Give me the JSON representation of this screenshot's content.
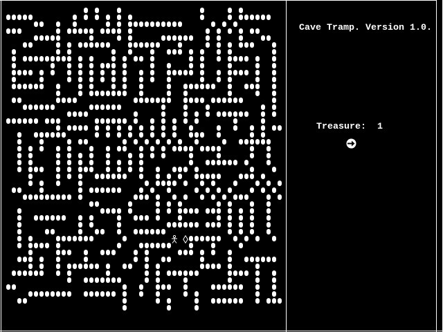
{
  "title": "Cave Tramp. Version 1.0.",
  "status": {
    "treasure_label": "Treasure:",
    "treasure_count": "1"
  },
  "icons": {
    "player": "stick-figure-icon",
    "treasure": "diamond-icon",
    "compass": "arrow-right-circle-icon"
  },
  "colors": {
    "background": "#000000",
    "foreground": "#ffffff"
  },
  "maze_legend": {
    "#": "wall",
    "P": "player",
    "D": "treasure",
    ".": "empty"
  },
  "maze": [
    "...................................................",
    "...............#.#...#..............#....#.#.......",
    ".#####.......#.#.#.#.#.#............#....#.######..",
    "......##..#..#.....#.#.##########.....#.#.#.......",
    ".###......#.#####.####.#.............#.#.#.#.##....",
    "......#####.....#....#.#.....######..#.#...#...##..",
    "....##....#.#.######...######...#....#.#.#.###...#.",
    "..#.......#.#.......#..#...#..###.#.#..#.#.......#.",
    "..#.#########.#.#...#.#.##.#......#.#..#.####.#..#.",
    "..#......#..#.#.#.###.#....#..#...#.#....#....#..#.",
    "..####.#.#..#.#.#.#.#.#..#.#..#####.#..#.####.#..#.",
    "..#....#....#.#.#.#.#.#..#.#..#.....#..#.#....#..#.",
    "..######..#...#.#...#.#..#....#..######..#..###..#.",
    "..........#...#.#######..#....#..#.......#....#..#.",
    "..##......####..........#######..####.######.....#.",
    "....######......######.......#...#...#.........#.#.",
    "............####........#....#...#.#.#.######..#.#.",
    ".######.###......######.#..#.#.#.#.#......#....#...",
    "..........#.####.#.#.#.#.#.#.#.#..#....#..#..#.#.##",
    "...#..######.....#.#.#.#.#.#.#.#..###..#.....#.#...",
    "...#...#....#.##......#.#.#.#.#.#..#....#..######..",
    "...#.#.#..#.#...#..#.##..#.#.#.####.####.....#..#..",
    "...#.#....#.#.#.#..#...#.#.#.#....#....#.....#..#..",
    "...#.#....#.#.#.#..#.#.#.#........#..######.#...#.",
    "...#.###..#.#.###..#.#.#.#..#..###.#.........#...#.",
    ".....#....#.#.#..######..#..#.#.#..#####...###.#...",
    ".....#.#..#...#...........#.####.#..#.#...#...#.#.#.",
    "..##...#......#.######...#.#..#....#.#.#.#...#.#.#.",
    "....#########.#.........###.#..#.#..#.#.#.###...#.#.",
    "................##.....#....#.#.#......#.#...#..#..",
    "...#..............####.#....#.#.####.###.#.#.#..#..",
    "...#..######..#.#....#..###.#...#......#.#.#.#..#..",
    "...#..........#.#....#........######.###.#.#.#..#..",
    "...#....##....#..##..#..######...........#.#.#..#..",
    "...#.#....#######.....#........P.D######..#.#.#..#..",
    "...#.####.#..........#...######...#...#....#.......",
    ".....#....###..#..###...#.#.....###.#.#..#.........",
    "...###.#..#....#........#.#..##.....#....#..######.",
    ".....#.#..#.######.#..##..#.#.......####.#....#....",
    "..######..#.#......#......#.#.######.....####.#..#.",
    "............#..#######....#.#....#.......#....#..#.",
    ".##...................#..#..###..#....######..#..#.",
    ".....########..######.#..#..#....#.#..........#..#.",
    "...##.................#.....#.#....#..######..#.###",
    "......................#.......#....#..............."
  ]
}
